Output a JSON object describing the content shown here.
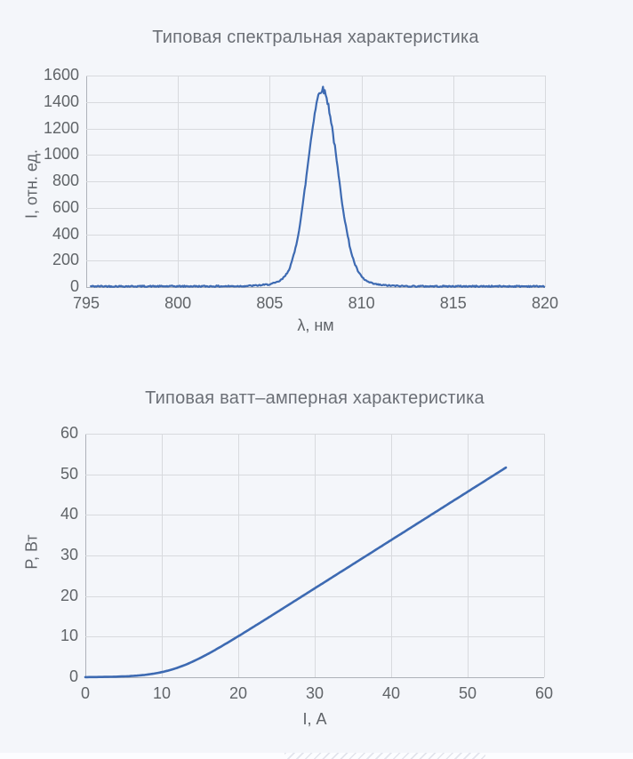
{
  "colors": {
    "background": "#f4f6fa",
    "line_blue": "#3d6ab2",
    "grid": "#d8dade",
    "axis": "#aeb2b9",
    "text_gray": "#5f6368",
    "title_gray": "#6b6f76"
  },
  "chart_data": [
    {
      "type": "line",
      "title": "Типовая спектральная характеристика",
      "xlabel": "λ, нм",
      "ylabel": "I, отн. ед.",
      "xlim": [
        795,
        820
      ],
      "ylim": [
        0,
        1600
      ],
      "xticks": [
        795,
        800,
        805,
        810,
        815,
        820
      ],
      "yticks": [
        0,
        200,
        400,
        600,
        800,
        1000,
        1200,
        1400,
        1600
      ],
      "grid": true,
      "legend": "none",
      "line_color": "#3d6ab2",
      "series": [
        {
          "name": "spectrum",
          "x": [
            795,
            796,
            797,
            798,
            799,
            800,
            801,
            802,
            803,
            804,
            804.5,
            805,
            805.5,
            806,
            806.5,
            807,
            807.5,
            807.85,
            808,
            808.5,
            809,
            809.5,
            810,
            810.5,
            811,
            811.5,
            812,
            813,
            814,
            815,
            816,
            817,
            818,
            819,
            820
          ],
          "y": [
            6,
            6,
            6,
            6,
            6,
            6,
            6,
            6,
            7,
            10,
            14,
            22,
            43,
            121,
            360,
            839,
            1354,
            1490,
            1472,
            1108,
            591,
            235,
            80,
            32,
            17,
            11,
            8,
            6,
            6,
            6,
            6,
            6,
            6,
            6,
            6
          ]
        }
      ],
      "model": {
        "kind": "spectral",
        "start": 795.25,
        "end": 819.95,
        "step": 0.05,
        "base": 6,
        "peak": 1420,
        "center": 807.85,
        "sigma_left": 0.77,
        "sigma_right": 0.82,
        "broad_amp": 70,
        "broad_sigma": 1.6,
        "noise_base": 5,
        "noise_rel": 0.013,
        "seed": 42
      }
    },
    {
      "type": "line",
      "title": "Типовая ватт–амперная характеристика",
      "xlabel": "I, А",
      "ylabel": "P, Вт",
      "xlim": [
        0,
        60
      ],
      "ylim": [
        0,
        60
      ],
      "xticks": [
        0,
        10,
        20,
        30,
        40,
        50,
        60
      ],
      "yticks": [
        0,
        10,
        20,
        30,
        40,
        50,
        60
      ],
      "grid": true,
      "legend": "none",
      "line_color": "#3d6ab2",
      "series": [
        {
          "name": "power_vs_current",
          "x": [
            0,
            2.5,
            5,
            7.5,
            10,
            12.5,
            15,
            17.5,
            20,
            25,
            30,
            35,
            40,
            45,
            50,
            55
          ],
          "y": [
            0,
            0.1,
            0.2,
            0.5,
            1.3,
            2.6,
            4.7,
            7.3,
            10.1,
            16.0,
            21.9,
            27.8,
            33.8,
            39.7,
            45.7,
            51.6
          ]
        }
      ],
      "model": {
        "kind": "softplus",
        "start": 0,
        "end": 55,
        "step": 0.25,
        "slope": 1.19,
        "i0": 11.6,
        "w": 2.5
      }
    }
  ]
}
